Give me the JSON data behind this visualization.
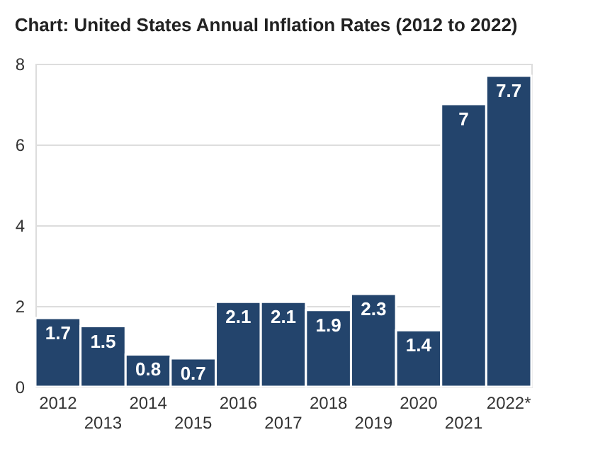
{
  "chart_data": {
    "type": "bar",
    "title": "Chart: United States Annual Inflation Rates (2012 to 2022)",
    "categories": [
      "2012",
      "2013",
      "2014",
      "2015",
      "2016",
      "2017",
      "2018",
      "2019",
      "2020",
      "2021",
      "2022*"
    ],
    "values": [
      1.7,
      1.5,
      0.8,
      0.7,
      2.1,
      2.1,
      1.9,
      2.3,
      1.4,
      7,
      7.7
    ],
    "color": "#23446c",
    "ylim": [
      0,
      8
    ],
    "yticks": [
      0,
      2,
      4,
      6,
      8
    ],
    "grid": "y",
    "data_labels": true
  }
}
